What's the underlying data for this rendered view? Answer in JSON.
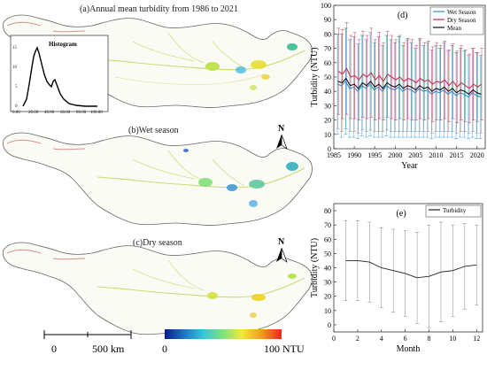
{
  "panels": {
    "a": {
      "title": "(a)Annual mean turbidity from 1986 to 2021"
    },
    "b": {
      "title": "(b)Wet season"
    },
    "c": {
      "title": "(c)Dry season"
    }
  },
  "histogram": {
    "title": "Histogram",
    "y_ticks": [
      "0",
      "5",
      "10",
      "15"
    ],
    "x_ticks": [
      "0.00",
      "20.00",
      "40.00",
      "60.00",
      "80.00",
      "100.00"
    ]
  },
  "north_arrow": {
    "label": "N"
  },
  "scale_bar": {
    "zero": "0",
    "end": "500 km"
  },
  "color_legend": {
    "min": "0",
    "max": "100 NTU",
    "colors": [
      "#0a1a8c",
      "#1f78c8",
      "#35c6d8",
      "#7ee27a",
      "#f2e83a",
      "#f39a20",
      "#e8281c"
    ]
  },
  "chart_data": [
    {
      "panel": "(d)",
      "type": "line",
      "xlabel": "Year",
      "ylabel": "Turbidity (NTU)",
      "xlim": [
        1985,
        2022
      ],
      "ylim": [
        0,
        100
      ],
      "x_ticks": [
        1985,
        1990,
        1995,
        2000,
        2005,
        2010,
        2015,
        2020
      ],
      "y_ticks": [
        0,
        10,
        20,
        30,
        40,
        50,
        60,
        70,
        80,
        90,
        100
      ],
      "legend_position": "top-right",
      "x": [
        1986,
        1987,
        1988,
        1989,
        1990,
        1991,
        1992,
        1993,
        1994,
        1995,
        1996,
        1997,
        1998,
        1999,
        2000,
        2001,
        2002,
        2003,
        2004,
        2005,
        2006,
        2007,
        2008,
        2009,
        2010,
        2011,
        2012,
        2013,
        2014,
        2015,
        2016,
        2017,
        2018,
        2019,
        2020,
        2021
      ],
      "series": [
        {
          "name": "Wet Season",
          "color": "#2a8fd6",
          "values": [
            45,
            44,
            47,
            42,
            43,
            40,
            44,
            42,
            45,
            41,
            43,
            40,
            44,
            42,
            41,
            43,
            40,
            42,
            41,
            39,
            42,
            40,
            41,
            38,
            40,
            39,
            41,
            38,
            40,
            37,
            39,
            38,
            36,
            39,
            37,
            36
          ],
          "error": [
            35,
            36,
            37,
            34,
            35,
            33,
            35,
            34,
            36,
            33,
            35,
            32,
            35,
            34,
            33,
            35,
            32,
            34,
            33,
            31,
            34,
            32,
            33,
            31,
            32,
            31,
            33,
            30,
            32,
            30,
            31,
            30,
            29,
            31,
            30,
            29
          ]
        },
        {
          "name": "Dry Season",
          "color": "#c0304a",
          "values": [
            54,
            52,
            56,
            50,
            51,
            48,
            52,
            50,
            53,
            48,
            51,
            47,
            52,
            50,
            48,
            50,
            47,
            49,
            48,
            46,
            49,
            47,
            48,
            45,
            47,
            46,
            48,
            44,
            47,
            43,
            46,
            44,
            42,
            45,
            43,
            45
          ],
          "error": [
            30,
            31,
            32,
            29,
            30,
            28,
            30,
            29,
            31,
            28,
            30,
            27,
            30,
            29,
            28,
            29,
            27,
            28,
            28,
            26,
            28,
            27,
            27,
            26,
            27,
            26,
            27,
            25,
            26,
            25,
            26,
            25,
            24,
            25,
            24,
            25
          ]
        },
        {
          "name": "Mean",
          "color": "#111111",
          "values": [
            47,
            46,
            49,
            44,
            45,
            42,
            46,
            44,
            47,
            43,
            45,
            42,
            46,
            44,
            43,
            45,
            42,
            44,
            43,
            41,
            44,
            42,
            43,
            40,
            42,
            41,
            43,
            40,
            42,
            39,
            41,
            40,
            38,
            41,
            39,
            38
          ],
          "error": [
            33,
            34,
            35,
            32,
            33,
            31,
            33,
            32,
            34,
            31,
            33,
            30,
            33,
            32,
            31,
            33,
            30,
            32,
            31,
            29,
            32,
            30,
            31,
            29,
            30,
            29,
            31,
            28,
            30,
            28,
            29,
            28,
            27,
            29,
            28,
            27
          ]
        }
      ]
    },
    {
      "panel": "(e)",
      "type": "line",
      "xlabel": "Month",
      "ylabel": "Turbidity (NTU)",
      "xlim": [
        0,
        12.5
      ],
      "ylim": [
        -5,
        85
      ],
      "x_ticks": [
        0,
        2,
        4,
        6,
        8,
        10,
        12
      ],
      "y_ticks": [
        0,
        10,
        20,
        30,
        40,
        50,
        60,
        70,
        80
      ],
      "legend_position": "top-right",
      "x": [
        1,
        2,
        3,
        4,
        5,
        6,
        7,
        8,
        9,
        10,
        11,
        12
      ],
      "series": [
        {
          "name": "Turbidity",
          "color": "#222222",
          "values": [
            45,
            45,
            44,
            40,
            38,
            36,
            33,
            34,
            37,
            38,
            41,
            42
          ],
          "error": [
            28,
            28,
            28,
            28,
            29,
            30,
            32,
            36,
            35,
            32,
            30,
            28
          ]
        }
      ]
    }
  ]
}
